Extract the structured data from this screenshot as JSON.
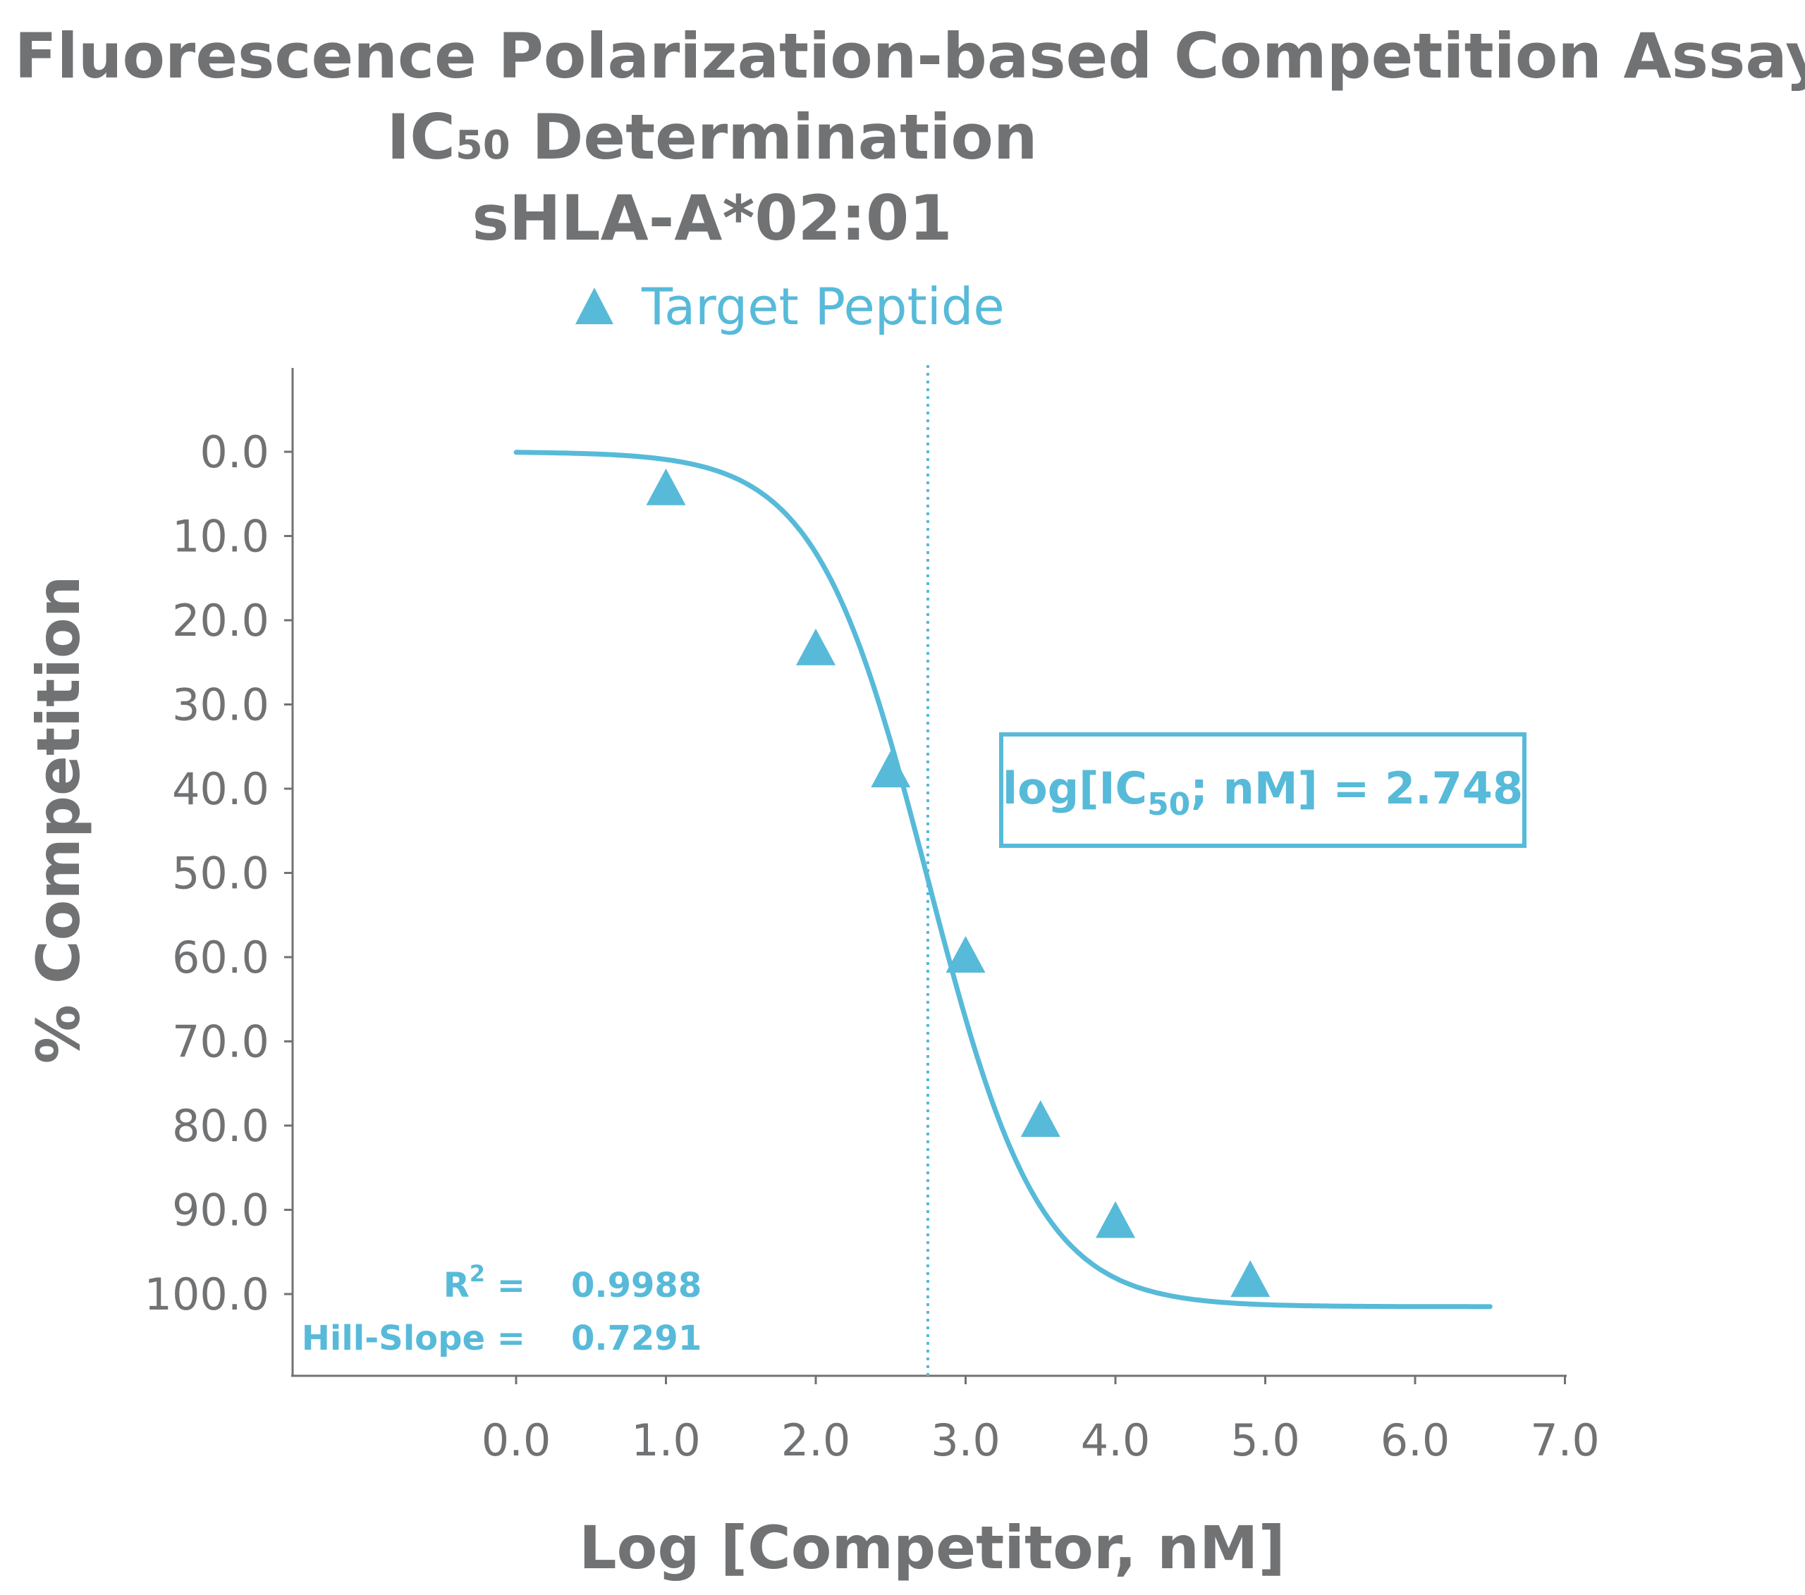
{
  "title": {
    "line1": "Fluorescence Polarization-based Competition Assay",
    "line2_pre": "IC",
    "line2_sub": "50",
    "line2_post": " Determination",
    "line3": "sHLA-A*02:01"
  },
  "legend": {
    "label": "Target Peptide"
  },
  "annotation": {
    "pre": "log[IC",
    "sub": "50",
    "post": "; nM] = 2.748"
  },
  "stats": {
    "r2_label": "R",
    "r2_sup": "2",
    "r2_eq": " =",
    "r2_value": "0.9988",
    "hill_label": "Hill-Slope =",
    "hill_value": "0.7291"
  },
  "colors": {
    "series": "#57BAD9",
    "axis": "#707274",
    "text": "#707274"
  },
  "chart_data": {
    "type": "scatter",
    "title": "Fluorescence Polarization-based Competition Assay IC50 Determination sHLA-A*02:01",
    "xlabel": "Log [Competitor, nM]",
    "ylabel": "% Competition",
    "xlim": [
      -1.5,
      7.0
    ],
    "ylim": [
      -10,
      110
    ],
    "y_inverted": true,
    "x_ticks": [
      "0.0",
      "1.0",
      "2.0",
      "3.0",
      "4.0",
      "5.0",
      "6.0",
      "7.0"
    ],
    "y_ticks": [
      "0.0",
      "10.0",
      "20.0",
      "30.0",
      "40.0",
      "50.0",
      "60.0",
      "70.0",
      "80.0",
      "90.0",
      "100.0"
    ],
    "grid": false,
    "legend_position": "top",
    "series": [
      {
        "name": "Target Peptide",
        "marker": "triangle",
        "x": [
          1.0,
          2.0,
          2.5,
          3.0,
          3.5,
          4.0,
          4.9
        ],
        "y": [
          4.5,
          23.5,
          38.0,
          60.0,
          79.5,
          91.5,
          98.5
        ]
      }
    ],
    "fit": {
      "type": "4PL",
      "bottom": 0.0,
      "top": 101.5,
      "log_ic50": 2.748,
      "hill_slope": 0.7291,
      "x_range": [
        0.0,
        6.5
      ]
    },
    "reference_line": {
      "x": 2.748,
      "style": "dotted"
    },
    "r_squared": 0.9988
  }
}
